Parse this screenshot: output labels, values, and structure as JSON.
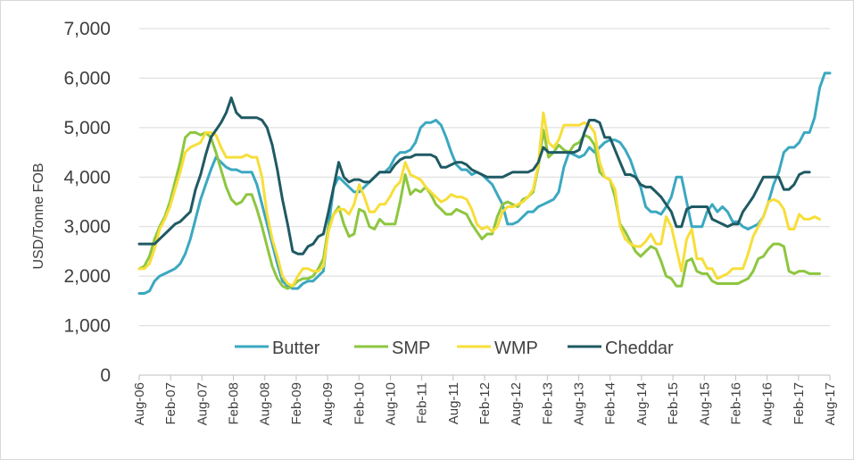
{
  "chart_data": {
    "type": "line",
    "title": "",
    "xlabel": "",
    "ylabel": "USD/Tonne FOB",
    "ylim": [
      0,
      7000
    ],
    "yticks": [
      0,
      1000,
      2000,
      3000,
      4000,
      5000,
      6000,
      7000
    ],
    "ytick_labels": [
      "0",
      "1,000",
      "2,000",
      "3,000",
      "4,000",
      "5,000",
      "6,000",
      "7,000"
    ],
    "x_start": "Aug-06",
    "x_end": "Aug-17",
    "xtick_labels": [
      "Aug-06",
      "Feb-07",
      "Aug-07",
      "Feb-08",
      "Aug-08",
      "Feb-09",
      "Aug-09",
      "Feb-10",
      "Aug-10",
      "Feb-11",
      "Aug-11",
      "Feb-12",
      "Aug-12",
      "Feb-13",
      "Aug-13",
      "Feb-14",
      "Aug-14",
      "Feb-15",
      "Aug-15",
      "Feb-16",
      "Aug-16",
      "Feb-17",
      "Aug-17"
    ],
    "legend_position": "bottom",
    "grid": "horizontal",
    "point_interval": "monthly, Aug-06 to Aug-17",
    "series": [
      {
        "name": "Butter",
        "color": "#3ba8c0",
        "values": [
          1650,
          1650,
          1700,
          1900,
          2000,
          2050,
          2100,
          2150,
          2250,
          2450,
          2750,
          3150,
          3550,
          3850,
          4150,
          4400,
          4300,
          4200,
          4150,
          4150,
          4100,
          4100,
          4100,
          3850,
          3450,
          3050,
          2650,
          2250,
          1900,
          1800,
          1750,
          1750,
          1850,
          1900,
          1900,
          2000,
          2100,
          3000,
          3800,
          4000,
          3900,
          3800,
          3700,
          3700,
          3800,
          3900,
          4000,
          4100,
          4100,
          4200,
          4400,
          4500,
          4500,
          4550,
          4700,
          5000,
          5100,
          5100,
          5150,
          5050,
          4800,
          4500,
          4250,
          4150,
          4150,
          4050,
          4100,
          4050,
          3950,
          3850,
          3650,
          3450,
          3050,
          3050,
          3100,
          3200,
          3300,
          3300,
          3400,
          3450,
          3500,
          3550,
          3700,
          4200,
          4500,
          4450,
          4400,
          4450,
          4600,
          4500,
          4600,
          4700,
          4750,
          4750,
          4700,
          4550,
          4350,
          4050,
          3800,
          3400,
          3300,
          3300,
          3250,
          3400,
          3600,
          4000,
          4000,
          3500,
          3000,
          3000,
          3000,
          3300,
          3450,
          3300,
          3400,
          3300,
          3100,
          3100,
          3000,
          2950,
          3000,
          3050,
          3200,
          3500,
          3850,
          4100,
          4500,
          4600,
          4600,
          4700,
          4900,
          4900,
          5200,
          5800,
          6100,
          6100
        ]
      },
      {
        "name": "SMP",
        "color": "#8dc63f",
        "values": [
          2150,
          2200,
          2400,
          2750,
          3000,
          3200,
          3500,
          3900,
          4300,
          4800,
          4900,
          4900,
          4850,
          4900,
          4800,
          4500,
          4150,
          3800,
          3550,
          3450,
          3500,
          3650,
          3650,
          3350,
          3000,
          2600,
          2200,
          1950,
          1800,
          1750,
          1800,
          1900,
          1950,
          1950,
          2000,
          2150,
          2350,
          3000,
          3250,
          3400,
          3050,
          2800,
          2850,
          3350,
          3300,
          3000,
          2950,
          3150,
          3050,
          3050,
          3050,
          3500,
          4050,
          3650,
          3750,
          3700,
          3800,
          3650,
          3450,
          3350,
          3250,
          3250,
          3350,
          3300,
          3250,
          3050,
          2900,
          2750,
          2850,
          2850,
          3200,
          3450,
          3500,
          3450,
          3400,
          3550,
          3600,
          3700,
          4200,
          4950,
          4400,
          4500,
          4650,
          4550,
          4500,
          4650,
          4700,
          4850,
          4800,
          4650,
          4100,
          4000,
          3950,
          3600,
          3050,
          2900,
          2700,
          2500,
          2400,
          2500,
          2600,
          2550,
          2300,
          2000,
          1950,
          1800,
          1800,
          2300,
          2350,
          2100,
          2050,
          2050,
          1900,
          1850,
          1850,
          1850,
          1850,
          1850,
          1900,
          1950,
          2100,
          2350,
          2400,
          2550,
          2650,
          2650,
          2600,
          2100,
          2050,
          2100,
          2100,
          2050,
          2050,
          2050
        ]
      },
      {
        "name": "WMP",
        "color": "#f7de3a",
        "values": [
          2150,
          2150,
          2250,
          2550,
          2950,
          3150,
          3400,
          3750,
          4100,
          4500,
          4600,
          4650,
          4700,
          4900,
          4900,
          4850,
          4600,
          4400,
          4400,
          4400,
          4400,
          4450,
          4400,
          4400,
          4000,
          3250,
          2750,
          2400,
          2000,
          1850,
          1800,
          2000,
          2150,
          2150,
          2100,
          2100,
          2200,
          2900,
          3250,
          3350,
          3350,
          3250,
          3450,
          3850,
          3600,
          3300,
          3300,
          3450,
          3450,
          3600,
          3800,
          3900,
          4300,
          4050,
          4000,
          3950,
          3800,
          3700,
          3600,
          3500,
          3550,
          3650,
          3600,
          3600,
          3550,
          3350,
          3050,
          2950,
          3000,
          2900,
          3000,
          3300,
          3400,
          3400,
          3450,
          3500,
          3600,
          3750,
          4250,
          5300,
          4700,
          4600,
          4750,
          5050,
          5050,
          5050,
          5050,
          5100,
          5050,
          4900,
          4300,
          4000,
          3950,
          3750,
          3000,
          2750,
          2650,
          2600,
          2600,
          2700,
          2850,
          2650,
          2650,
          3200,
          3000,
          2550,
          2100,
          2750,
          2950,
          2350,
          2350,
          2150,
          2150,
          1950,
          2000,
          2050,
          2150,
          2150,
          2150,
          2450,
          2800,
          3000,
          3200,
          3500,
          3550,
          3500,
          3350,
          2950,
          2950,
          3250,
          3150,
          3150,
          3200,
          3150
        ]
      },
      {
        "name": "Cheddar",
        "color": "#1f5a63",
        "values": [
          2650,
          2650,
          2650,
          2650,
          2750,
          2850,
          2950,
          3050,
          3100,
          3200,
          3300,
          3750,
          4050,
          4450,
          4800,
          4950,
          5100,
          5300,
          5600,
          5300,
          5200,
          5200,
          5200,
          5200,
          5150,
          5000,
          4650,
          4150,
          3550,
          3050,
          2500,
          2450,
          2450,
          2600,
          2650,
          2800,
          2850,
          3300,
          3800,
          4300,
          4000,
          3900,
          3950,
          3950,
          3900,
          3900,
          4000,
          4100,
          4100,
          4100,
          4250,
          4350,
          4400,
          4400,
          4450,
          4450,
          4450,
          4450,
          4400,
          4200,
          4200,
          4250,
          4300,
          4300,
          4250,
          4150,
          4100,
          4050,
          4000,
          4000,
          4000,
          4000,
          4050,
          4100,
          4100,
          4100,
          4100,
          4150,
          4300,
          4600,
          4500,
          4500,
          4500,
          4500,
          4500,
          4500,
          4550,
          4900,
          5150,
          5150,
          5100,
          4800,
          4800,
          4550,
          4300,
          4050,
          4050,
          4000,
          3850,
          3800,
          3800,
          3700,
          3600,
          3450,
          3300,
          3000,
          3000,
          3350,
          3400,
          3400,
          3400,
          3400,
          3150,
          3100,
          3050,
          3000,
          3050,
          3050,
          3300,
          3450,
          3600,
          3800,
          4000,
          4000,
          4000,
          4000,
          3750,
          3750,
          3850,
          4050,
          4100,
          4100
        ]
      }
    ]
  }
}
